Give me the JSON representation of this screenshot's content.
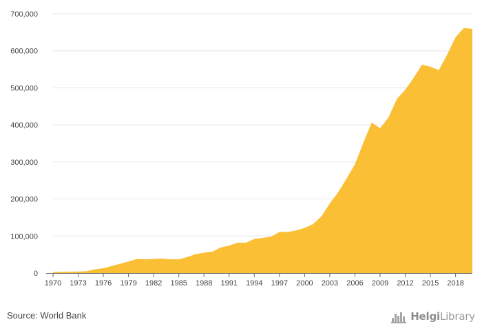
{
  "chart_data": {
    "type": "area",
    "x": [
      1970,
      1971,
      1972,
      1973,
      1974,
      1975,
      1976,
      1977,
      1978,
      1979,
      1980,
      1981,
      1982,
      1983,
      1984,
      1985,
      1986,
      1987,
      1988,
      1989,
      1990,
      1991,
      1992,
      1993,
      1994,
      1995,
      1996,
      1997,
      1998,
      1999,
      2000,
      2001,
      2002,
      2003,
      2004,
      2005,
      2006,
      2007,
      2008,
      2009,
      2010,
      2011,
      2012,
      2013,
      2014,
      2015,
      2016,
      2017,
      2018,
      2019,
      2020
    ],
    "y": [
      2500,
      3000,
      3500,
      4000,
      5000,
      10000,
      13000,
      19000,
      25000,
      31000,
      38000,
      37000,
      38000,
      39000,
      37000,
      37000,
      43000,
      51000,
      55000,
      58000,
      69000,
      74000,
      82000,
      82000,
      92000,
      95000,
      98000,
      111000,
      111000,
      115000,
      122000,
      132000,
      153000,
      188000,
      218000,
      255000,
      294000,
      352000,
      406000,
      391000,
      420000,
      470000,
      495000,
      527000,
      563000,
      557000,
      548000,
      590000,
      637000,
      662000,
      659000
    ],
    "x_ticks": [
      "1970",
      "1973",
      "1976",
      "1979",
      "1982",
      "1985",
      "1988",
      "1991",
      "1994",
      "1997",
      "2000",
      "2003",
      "2006",
      "2009",
      "2012",
      "2015",
      "2018"
    ],
    "y_ticks": [
      "0",
      "100,000",
      "200,000",
      "300,000",
      "400,000",
      "500,000",
      "600,000",
      "700,000"
    ],
    "ylim": [
      0,
      700000
    ],
    "xlim": [
      1970,
      2020
    ],
    "grid": "horizontal",
    "fill_color": "#fbbf35",
    "grid_color": "#e6e6e6",
    "axis_color": "#666666"
  },
  "footer": {
    "source": "Source: World Bank",
    "brand_prefix": "Helgi",
    "brand_suffix": "Library",
    "brand_color": "#9a9a9a"
  }
}
